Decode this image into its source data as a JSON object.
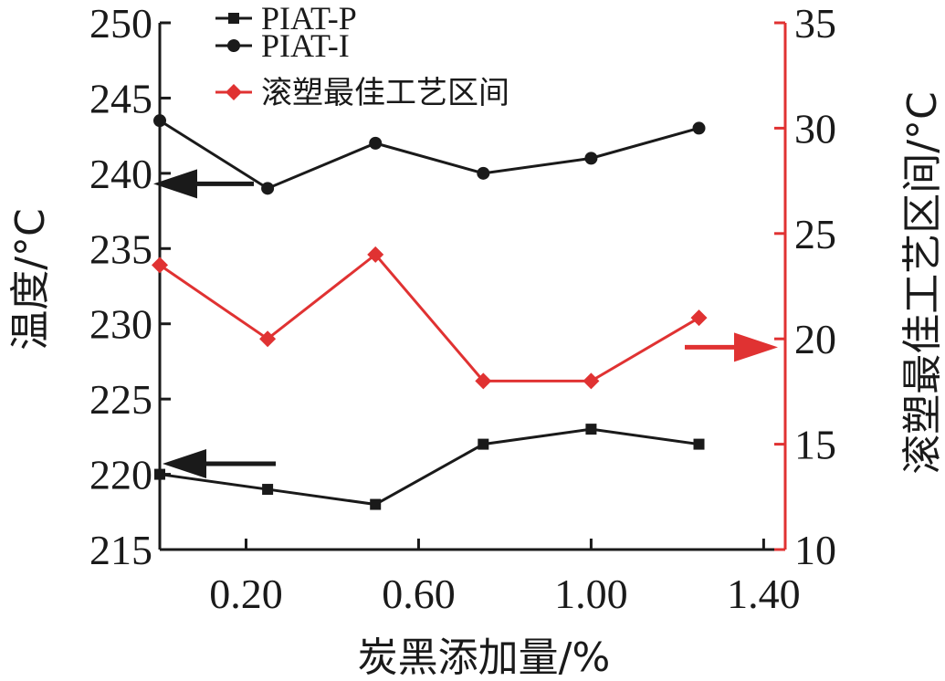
{
  "chart_data": {
    "type": "line",
    "title": "",
    "xlabel": "炭黑添加量/%",
    "ylabel_left": "温度/°C",
    "ylabel_right": "滚塑最佳工艺区间/°C",
    "xlim": [
      0,
      1.45
    ],
    "xticks": [
      0.2,
      0.6,
      1.0,
      1.4
    ],
    "xtick_labels": [
      "0.20",
      "0.60",
      "1.00",
      "1.40"
    ],
    "ylim_left": [
      215,
      250
    ],
    "yticks_left": [
      215,
      220,
      225,
      230,
      235,
      240,
      245,
      250
    ],
    "ylim_right": [
      10,
      35
    ],
    "yticks_right": [
      10,
      15,
      20,
      25,
      30,
      35
    ],
    "grid": false,
    "legend_placement": "top-left",
    "x": [
      0,
      0.25,
      0.5,
      0.75,
      1.0,
      1.25
    ],
    "series": [
      {
        "name": "PIAT-P",
        "axis": "left",
        "marker": "square",
        "color": "#1a1a1a",
        "values": [
          220,
          219,
          218,
          222,
          223,
          222
        ]
      },
      {
        "name": "PIAT-I",
        "axis": "left",
        "marker": "circle",
        "color": "#1a1a1a",
        "values": [
          243.5,
          239,
          242,
          240,
          241,
          243
        ]
      },
      {
        "name": "滚塑最佳工艺区间",
        "axis": "right",
        "marker": "diamond",
        "color": "#e03232",
        "values": [
          23.5,
          20,
          24,
          18,
          18,
          21
        ]
      }
    ],
    "annotations": [
      {
        "type": "arrow",
        "direction": "left",
        "color": "#1a1a1a",
        "target_axis": "left",
        "near_series": "PIAT-I"
      },
      {
        "type": "arrow",
        "direction": "left",
        "color": "#1a1a1a",
        "target_axis": "left",
        "near_series": "PIAT-P"
      },
      {
        "type": "arrow",
        "direction": "right",
        "color": "#e03232",
        "target_axis": "right",
        "near_series": "滚塑最佳工艺区间"
      }
    ],
    "colors": {
      "axis_left": "#1a1a1a",
      "axis_right": "#e03232"
    }
  }
}
